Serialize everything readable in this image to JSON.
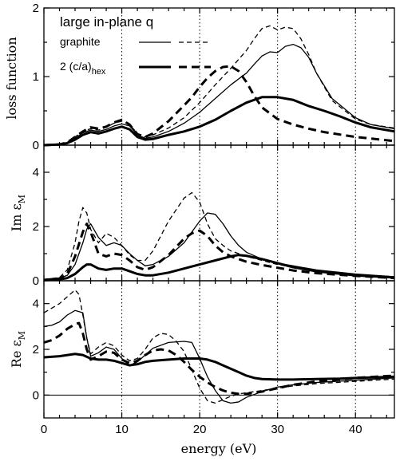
{
  "chart_data": [
    {
      "type": "line",
      "id": "loss",
      "ylabel": "loss function",
      "legend_title": "large in-plane q",
      "legend_labels": [
        "graphite",
        "2 (c/a)",
        "hex"
      ],
      "legend_placement": "top-left",
      "xlim": [
        0,
        45
      ],
      "ylim": [
        0,
        2
      ],
      "yticks": [
        0,
        1,
        2
      ],
      "ytick_labels": [
        "0",
        "1",
        "2"
      ],
      "xticks": [
        0,
        10,
        20,
        30,
        40
      ],
      "vgrid": [
        10,
        20,
        30,
        40
      ],
      "grid": false,
      "series": [
        {
          "style": "thin-solid",
          "x": [
            0,
            2,
            3,
            4,
            5,
            6,
            7,
            8,
            9,
            10,
            11,
            12,
            13,
            14,
            16,
            18,
            20,
            22,
            24,
            26,
            27,
            28,
            29,
            30,
            31,
            32,
            33,
            34,
            35,
            37,
            40,
            42,
            45
          ],
          "y": [
            0,
            0.01,
            0.03,
            0.1,
            0.18,
            0.22,
            0.2,
            0.23,
            0.28,
            0.31,
            0.28,
            0.15,
            0.1,
            0.12,
            0.2,
            0.32,
            0.48,
            0.68,
            0.88,
            1.05,
            1.18,
            1.3,
            1.36,
            1.35,
            1.44,
            1.47,
            1.42,
            1.28,
            1.05,
            0.68,
            0.4,
            0.3,
            0.24
          ]
        },
        {
          "style": "thin-dashed",
          "x": [
            0,
            2,
            3,
            4,
            5,
            6,
            7,
            8,
            9,
            10,
            11,
            12,
            13,
            14,
            16,
            18,
            20,
            22,
            24,
            26,
            27,
            28,
            29,
            30,
            31,
            32,
            33,
            34,
            35,
            37,
            40,
            42,
            45
          ],
          "y": [
            0,
            0.01,
            0.04,
            0.12,
            0.2,
            0.24,
            0.22,
            0.26,
            0.32,
            0.35,
            0.3,
            0.17,
            0.12,
            0.15,
            0.25,
            0.4,
            0.62,
            0.88,
            1.12,
            1.38,
            1.55,
            1.7,
            1.74,
            1.68,
            1.72,
            1.7,
            1.55,
            1.32,
            1.05,
            0.65,
            0.38,
            0.3,
            0.25
          ]
        },
        {
          "style": "thick-solid",
          "x": [
            0,
            2,
            3,
            4,
            5,
            6,
            7,
            8,
            9,
            10,
            11,
            12,
            13,
            14,
            16,
            18,
            20,
            22,
            24,
            26,
            28,
            30,
            32,
            34,
            36,
            38,
            40,
            42,
            45
          ],
          "y": [
            0,
            0.01,
            0.03,
            0.08,
            0.15,
            0.19,
            0.17,
            0.2,
            0.24,
            0.27,
            0.23,
            0.12,
            0.08,
            0.09,
            0.15,
            0.2,
            0.27,
            0.37,
            0.5,
            0.62,
            0.7,
            0.7,
            0.66,
            0.57,
            0.5,
            0.42,
            0.33,
            0.26,
            0.2
          ]
        },
        {
          "style": "thick-dashed",
          "x": [
            0,
            2,
            3,
            4,
            5,
            6,
            7,
            8,
            9,
            10,
            11,
            12,
            13,
            14,
            16,
            18,
            19,
            20,
            21,
            22,
            23,
            24,
            25,
            26,
            27,
            28,
            30,
            32,
            34,
            36,
            40,
            45
          ],
          "y": [
            0,
            0.01,
            0.04,
            0.12,
            0.2,
            0.26,
            0.24,
            0.27,
            0.33,
            0.37,
            0.3,
            0.16,
            0.12,
            0.17,
            0.35,
            0.58,
            0.7,
            0.85,
            0.98,
            1.08,
            1.14,
            1.15,
            1.08,
            0.92,
            0.72,
            0.55,
            0.38,
            0.3,
            0.24,
            0.19,
            0.12,
            0.06
          ]
        }
      ]
    },
    {
      "type": "line",
      "id": "im",
      "ylabel": "Im ε",
      "ylabel_sub": "M",
      "xlim": [
        0,
        45
      ],
      "ylim": [
        0,
        5
      ],
      "yticks": [
        0,
        2,
        4
      ],
      "ytick_labels": [
        "0",
        "2",
        "4"
      ],
      "xticks": [
        0,
        10,
        20,
        30,
        40
      ],
      "vgrid": [
        10,
        20,
        30,
        40
      ],
      "series": [
        {
          "style": "thin-solid",
          "x": [
            0,
            2,
            3,
            4,
            5,
            5.5,
            6,
            7,
            8,
            9,
            10,
            11,
            12,
            13,
            14,
            16,
            18,
            19,
            20,
            21,
            22,
            23,
            24,
            25,
            26,
            28,
            30,
            32,
            35,
            40,
            45
          ],
          "y": [
            0.05,
            0.1,
            0.2,
            0.6,
            1.4,
            1.9,
            2.1,
            1.6,
            1.3,
            1.4,
            1.3,
            1.0,
            0.75,
            0.55,
            0.6,
            0.9,
            1.4,
            1.8,
            2.2,
            2.5,
            2.45,
            2.1,
            1.65,
            1.3,
            1.05,
            0.8,
            0.65,
            0.55,
            0.4,
            0.25,
            0.15
          ]
        },
        {
          "style": "thin-dashed",
          "x": [
            0,
            2,
            3,
            4,
            4.5,
            5,
            5.5,
            6,
            7,
            8,
            9,
            10,
            11,
            12,
            13,
            14,
            16,
            18,
            19,
            20,
            21,
            22,
            23,
            24,
            25,
            26,
            28,
            30,
            32,
            35,
            40,
            45
          ],
          "y": [
            0.05,
            0.12,
            0.4,
            1.4,
            2.2,
            2.7,
            2.5,
            1.9,
            1.4,
            1.75,
            1.6,
            1.3,
            0.95,
            0.75,
            0.75,
            1.1,
            2.2,
            3.05,
            3.25,
            2.9,
            2.1,
            1.55,
            1.3,
            1.1,
            1.0,
            0.9,
            0.75,
            0.6,
            0.5,
            0.35,
            0.22,
            0.15
          ]
        },
        {
          "style": "thick-solid",
          "x": [
            0,
            2,
            3,
            4,
            5,
            5.5,
            6,
            7,
            8,
            9,
            10,
            11,
            12,
            13,
            14,
            16,
            18,
            20,
            22,
            24,
            25,
            26,
            28,
            30,
            32,
            35,
            40,
            45
          ],
          "y": [
            0.02,
            0.05,
            0.1,
            0.25,
            0.5,
            0.6,
            0.6,
            0.45,
            0.4,
            0.45,
            0.45,
            0.35,
            0.25,
            0.2,
            0.2,
            0.3,
            0.45,
            0.6,
            0.75,
            0.9,
            0.95,
            0.92,
            0.8,
            0.65,
            0.5,
            0.35,
            0.2,
            0.12
          ]
        },
        {
          "style": "thick-dashed",
          "x": [
            0,
            2,
            3,
            4,
            5,
            5.5,
            6,
            7,
            8,
            9,
            10,
            11,
            12,
            13,
            14,
            16,
            18,
            19,
            20,
            21,
            22,
            23,
            24,
            25,
            26,
            28,
            30,
            32,
            35,
            40,
            45
          ],
          "y": [
            0.03,
            0.08,
            0.25,
            0.9,
            1.8,
            2.1,
            1.8,
            1.0,
            0.9,
            1.0,
            0.95,
            0.75,
            0.5,
            0.4,
            0.5,
            0.95,
            1.55,
            1.75,
            1.85,
            1.65,
            1.3,
            1.05,
            0.9,
            0.8,
            0.7,
            0.58,
            0.48,
            0.38,
            0.28,
            0.18,
            0.1
          ]
        }
      ]
    },
    {
      "type": "line",
      "id": "re",
      "ylabel": "Re ε",
      "ylabel_sub": "M",
      "xlabel": "energy (eV)",
      "xlim": [
        0,
        45
      ],
      "ylim": [
        -1,
        5
      ],
      "yticks": [
        0,
        2,
        4
      ],
      "ytick_labels": [
        "0",
        "2",
        "4"
      ],
      "xticks": [
        0,
        10,
        20,
        30,
        40
      ],
      "xtick_labels": [
        "0",
        "10",
        "20",
        "30",
        "40"
      ],
      "vgrid": [
        10,
        20,
        30,
        40
      ],
      "zero_line": 0,
      "series": [
        {
          "style": "thin-solid",
          "x": [
            0,
            1,
            2,
            3,
            4,
            5,
            5.5,
            6,
            7,
            8,
            9,
            10,
            11,
            12,
            13,
            14,
            16,
            18,
            19,
            20,
            21,
            22,
            23,
            24,
            25,
            26,
            28,
            30,
            32,
            35,
            40,
            45
          ],
          "y": [
            3.0,
            3.05,
            3.2,
            3.5,
            3.7,
            3.6,
            2.5,
            1.7,
            1.85,
            2.1,
            2.0,
            1.6,
            1.3,
            1.45,
            1.75,
            2.05,
            2.3,
            2.35,
            2.3,
            1.6,
            0.8,
            0.2,
            -0.25,
            -0.35,
            -0.3,
            -0.1,
            0.15,
            0.35,
            0.45,
            0.55,
            0.65,
            0.75
          ]
        },
        {
          "style": "thin-dashed",
          "x": [
            0,
            1,
            2,
            3,
            4,
            4.5,
            5,
            5.5,
            6,
            7,
            8,
            9,
            10,
            11,
            12,
            13,
            14,
            15,
            16,
            17,
            18,
            19,
            20,
            21,
            22,
            23,
            24,
            25,
            26,
            28,
            30,
            32,
            35,
            40,
            45
          ],
          "y": [
            3.6,
            3.8,
            4.0,
            4.3,
            4.6,
            4.4,
            3.5,
            2.5,
            1.8,
            2.1,
            2.3,
            2.15,
            1.75,
            1.5,
            1.6,
            2.0,
            2.5,
            2.7,
            2.65,
            2.35,
            1.9,
            1.1,
            0.3,
            -0.25,
            -0.35,
            -0.2,
            -0.05,
            0.05,
            0.1,
            0.2,
            0.3,
            0.4,
            0.5,
            0.6,
            0.7
          ]
        },
        {
          "style": "thick-solid",
          "x": [
            0,
            2,
            4,
            5,
            6,
            7,
            8,
            9,
            10,
            11,
            12,
            13,
            14,
            16,
            18,
            20,
            21,
            22,
            23,
            24,
            25,
            26,
            27,
            28,
            30,
            32,
            35,
            38,
            40,
            45
          ],
          "y": [
            1.65,
            1.7,
            1.8,
            1.75,
            1.6,
            1.55,
            1.55,
            1.5,
            1.4,
            1.3,
            1.35,
            1.45,
            1.5,
            1.55,
            1.6,
            1.6,
            1.55,
            1.45,
            1.3,
            1.15,
            1.0,
            0.85,
            0.75,
            0.7,
            0.68,
            0.68,
            0.7,
            0.72,
            0.75,
            0.8
          ]
        },
        {
          "style": "thick-dashed",
          "x": [
            0,
            1,
            2,
            3,
            4,
            4.5,
            5,
            5.5,
            6,
            7,
            8,
            9,
            10,
            11,
            12,
            13,
            14,
            15,
            16,
            17,
            18,
            19,
            20,
            21,
            22,
            23,
            24,
            25,
            26,
            28,
            30,
            32,
            35,
            40,
            45
          ],
          "y": [
            2.3,
            2.4,
            2.6,
            2.9,
            3.1,
            3.15,
            2.7,
            2.0,
            1.55,
            1.7,
            1.9,
            1.85,
            1.55,
            1.4,
            1.5,
            1.75,
            1.95,
            2.0,
            1.95,
            1.75,
            1.45,
            1.1,
            0.8,
            0.55,
            0.35,
            0.2,
            0.1,
            0.05,
            0.05,
            0.15,
            0.3,
            0.45,
            0.6,
            0.75,
            0.85
          ]
        }
      ]
    }
  ]
}
